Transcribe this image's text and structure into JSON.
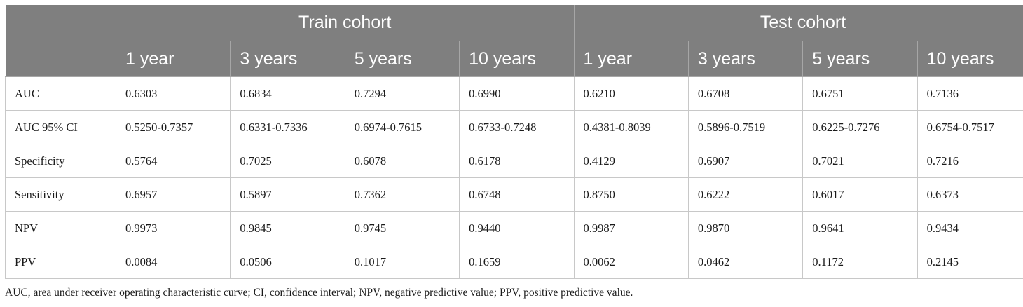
{
  "header": {
    "group_train": "Train cohort",
    "group_test": "Test cohort",
    "columns": [
      "1 year",
      "3 years",
      "5 years",
      "10 years",
      "1 year",
      "3 years",
      "5 years",
      "10 years"
    ]
  },
  "rows": [
    {
      "label": "AUC",
      "values": [
        "0.6303",
        "0.6834",
        "0.7294",
        "0.6990",
        "0.6210",
        "0.6708",
        "0.6751",
        "0.7136"
      ]
    },
    {
      "label": "AUC 95% CI",
      "values": [
        "0.5250-0.7357",
        "0.6331-0.7336",
        "0.6974-0.7615",
        "0.6733-0.7248",
        "0.4381-0.8039",
        "0.5896-0.7519",
        "0.6225-0.7276",
        "0.6754-0.7517"
      ]
    },
    {
      "label": "Specificity",
      "values": [
        "0.5764",
        "0.7025",
        "0.6078",
        "0.6178",
        "0.4129",
        "0.6907",
        "0.7021",
        "0.7216"
      ]
    },
    {
      "label": "Sensitivity",
      "values": [
        "0.6957",
        "0.5897",
        "0.7362",
        "0.6748",
        "0.8750",
        "0.6222",
        "0.6017",
        "0.6373"
      ]
    },
    {
      "label": "NPV",
      "values": [
        "0.9973",
        "0.9845",
        "0.9745",
        "0.9440",
        "0.9987",
        "0.9870",
        "0.9641",
        "0.9434"
      ]
    },
    {
      "label": "PPV",
      "values": [
        "0.0084",
        "0.0506",
        "0.1017",
        "0.1659",
        "0.0062",
        "0.0462",
        "0.1172",
        "0.2145"
      ]
    }
  ],
  "footnote": "AUC, area under receiver operating characteristic curve; CI, confidence interval; NPV, negative predictive value; PPV, positive predictive value."
}
